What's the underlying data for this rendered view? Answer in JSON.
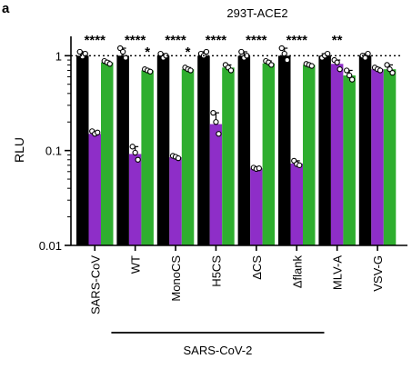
{
  "panel_letter": "a",
  "chart_data": {
    "type": "bar",
    "title": "293T-ACE2",
    "ylabel": "RLU",
    "xlabel": "",
    "yscale": "log",
    "ylim": [
      0.01,
      1.6
    ],
    "yticks": [
      0.01,
      0.1,
      1
    ],
    "ytick_labels": [
      "0.01",
      "0.1",
      "1"
    ],
    "reference_line": 1,
    "categories": [
      "SARS-CoV",
      "WT",
      "MonoCS",
      "H5CS",
      "ΔCS",
      "Δflank",
      "MLV-A",
      "VSV-G"
    ],
    "group_bracket": {
      "label": "SARS-CoV-2",
      "from": "WT",
      "to": "Δflank"
    },
    "series": [
      {
        "color": "#000000",
        "values": [
          1.0,
          1.0,
          1.0,
          1.0,
          1.0,
          1.0,
          1.0,
          1.0
        ],
        "points": [
          [
            1.1,
            0.98,
            1.05
          ],
          [
            1.2,
            1.1,
            0.95
          ],
          [
            1.05,
            0.95,
            1.0
          ],
          [
            1.05,
            1.0,
            1.1
          ],
          [
            1.1,
            0.95,
            1.0
          ],
          [
            1.2,
            1.05,
            0.9
          ],
          [
            0.95,
            1.0,
            1.05
          ],
          [
            1.0,
            0.95,
            1.05
          ]
        ]
      },
      {
        "color": "#8e2ec8",
        "values": [
          0.15,
          0.092,
          0.085,
          0.19,
          0.065,
          0.073,
          0.82,
          0.72
        ],
        "points": [
          [
            0.16,
            0.15,
            0.155
          ],
          [
            0.11,
            0.095,
            0.08
          ],
          [
            0.088,
            0.086,
            0.083
          ],
          [
            0.25,
            0.2,
            0.15
          ],
          [
            0.066,
            0.064,
            0.065
          ],
          [
            0.078,
            0.072,
            0.07
          ],
          [
            0.9,
            0.85,
            0.72
          ],
          [
            0.75,
            0.72,
            0.7
          ]
        ]
      },
      {
        "color": "#2fae2f",
        "values": [
          0.85,
          0.7,
          0.72,
          0.75,
          0.83,
          0.8,
          0.62,
          0.72
        ],
        "points": [
          [
            0.88,
            0.85,
            0.82
          ],
          [
            0.72,
            0.7,
            0.68
          ],
          [
            0.75,
            0.72,
            0.7
          ],
          [
            0.8,
            0.75,
            0.7
          ],
          [
            0.88,
            0.85,
            0.8
          ],
          [
            0.82,
            0.8,
            0.78
          ],
          [
            0.7,
            0.62,
            0.56
          ],
          [
            0.8,
            0.72,
            0.66
          ]
        ]
      }
    ],
    "significance": [
      {
        "category": "SARS-CoV",
        "over": "purple",
        "label": "****"
      },
      {
        "category": "WT",
        "over": "purple",
        "label": "****"
      },
      {
        "category": "WT",
        "over": "green",
        "label": "*"
      },
      {
        "category": "MonoCS",
        "over": "purple",
        "label": "****"
      },
      {
        "category": "MonoCS",
        "over": "green",
        "label": "*"
      },
      {
        "category": "H5CS",
        "over": "purple",
        "label": "****"
      },
      {
        "category": "ΔCS",
        "over": "purple",
        "label": "****"
      },
      {
        "category": "Δflank",
        "over": "purple",
        "label": "****"
      },
      {
        "category": "MLV-A",
        "over": "purple",
        "label": "**"
      }
    ]
  }
}
